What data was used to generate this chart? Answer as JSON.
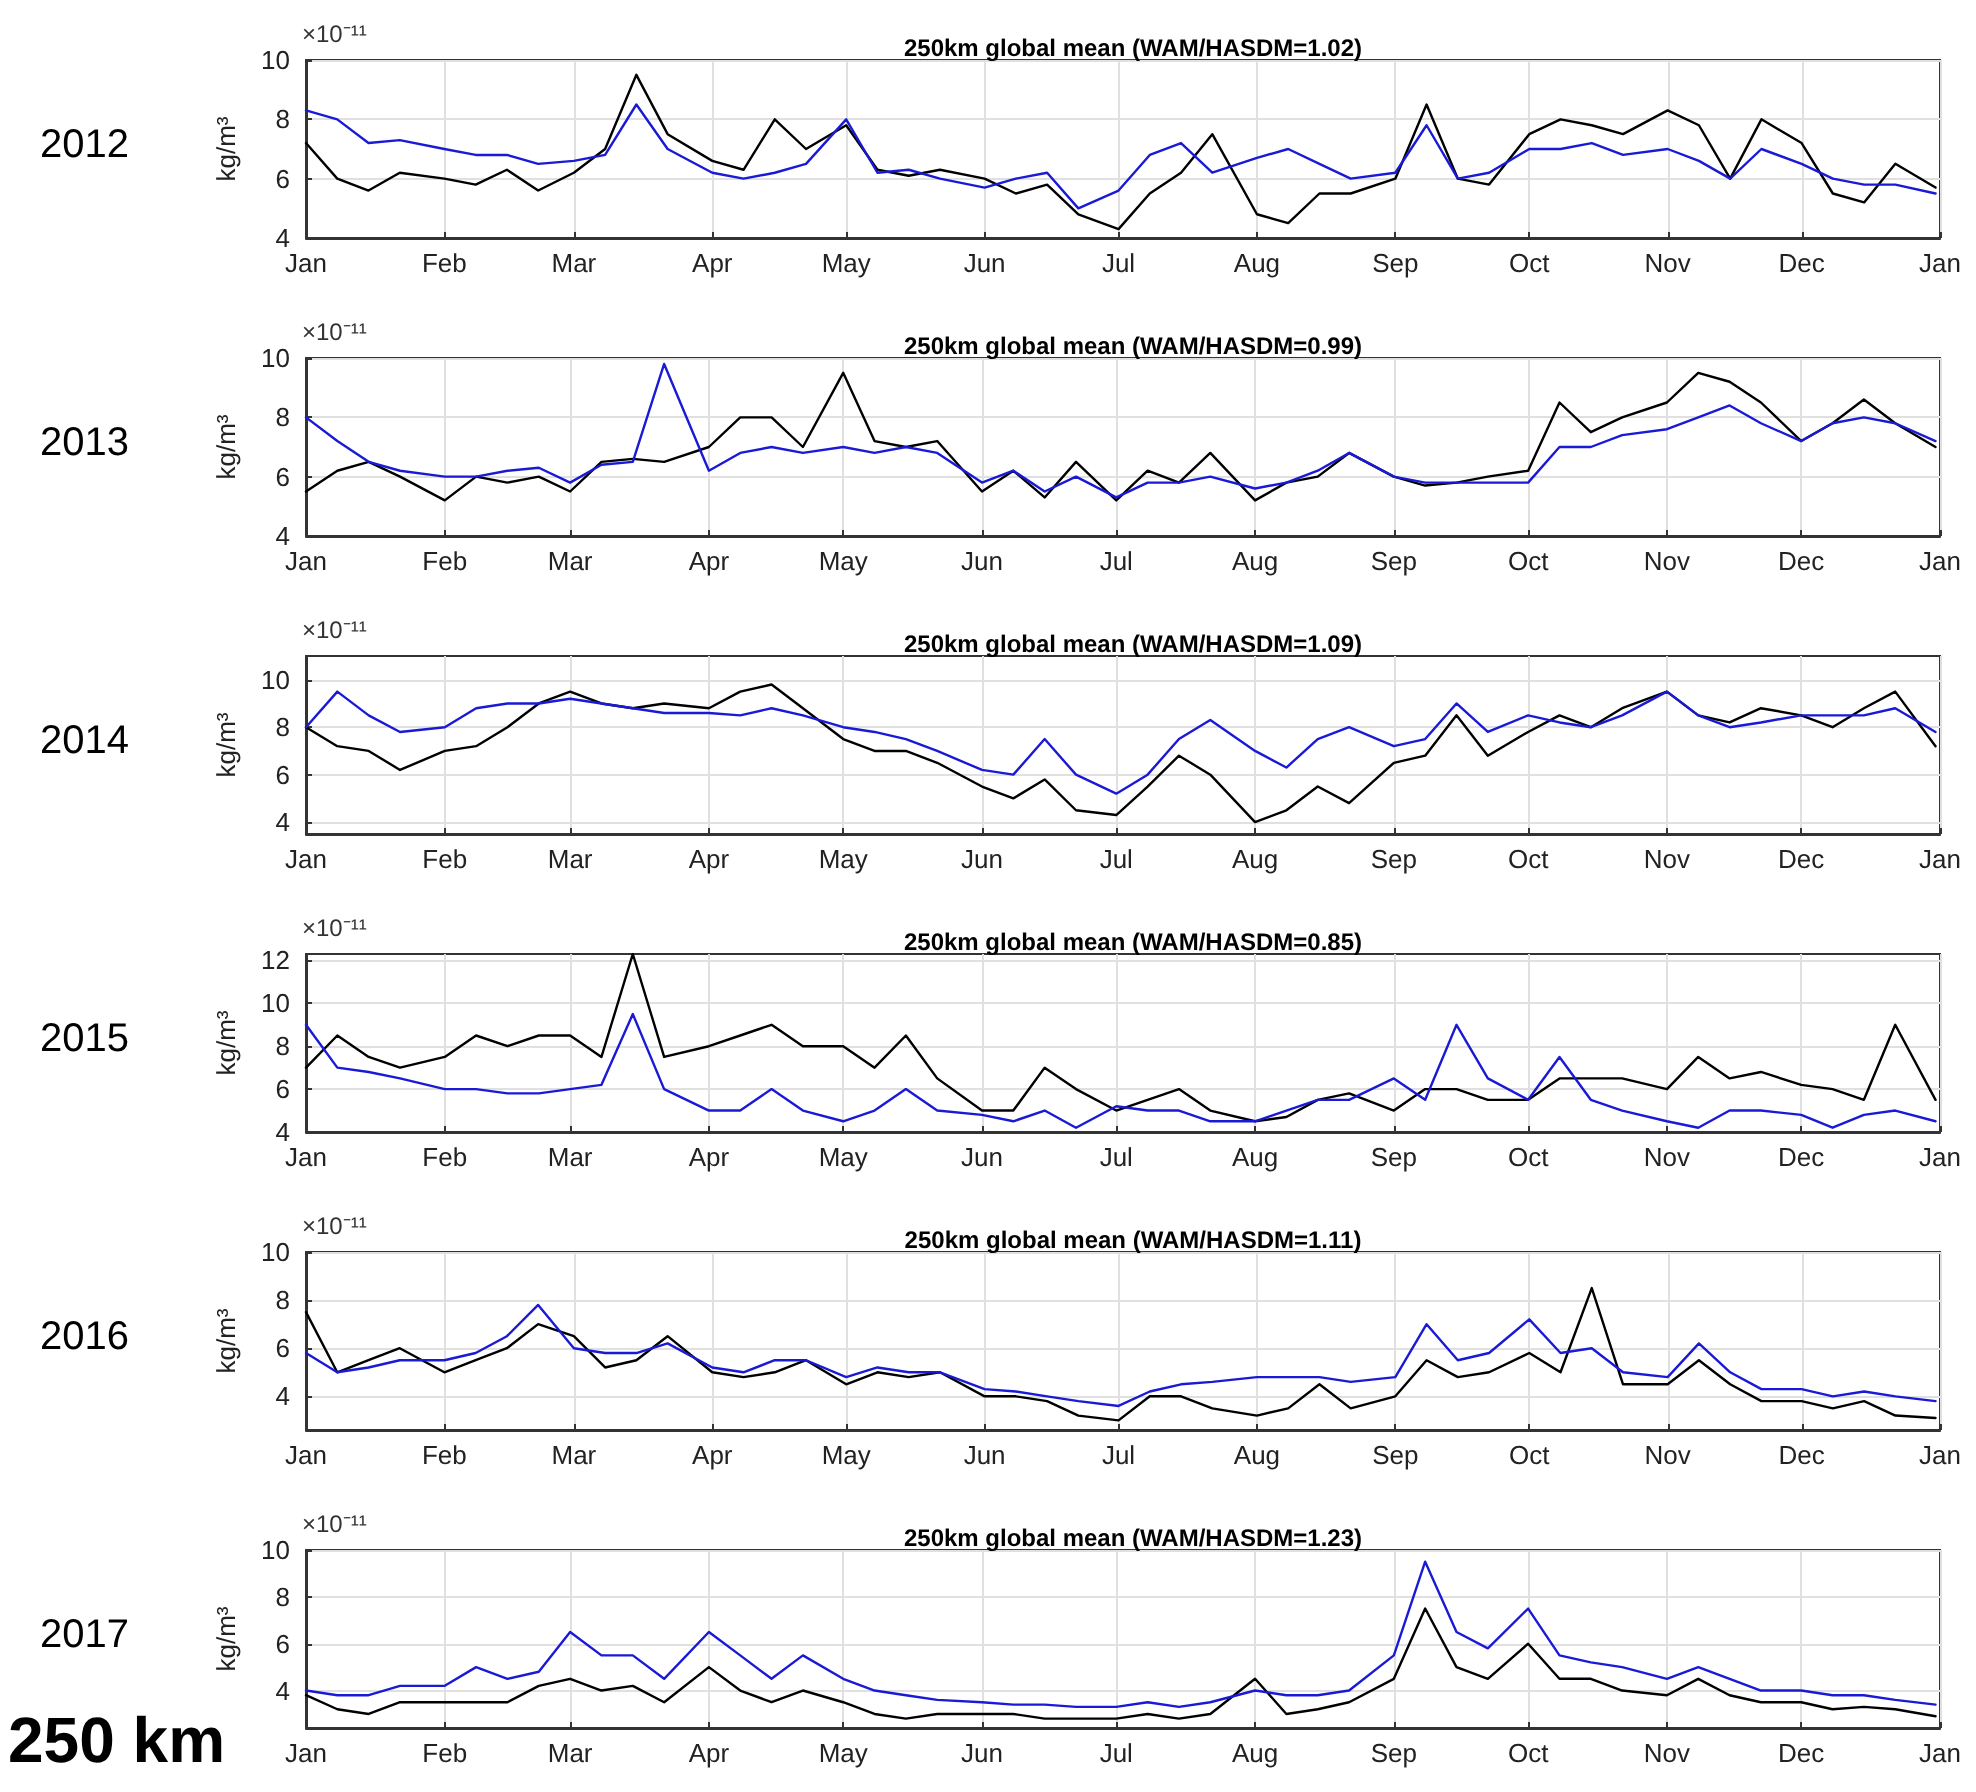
{
  "chart_data": [
    {
      "type": "line",
      "title": "250km global mean (WAM/HASDM=1.02)",
      "ylabel": "kg/m³",
      "annotations": [
        "2012",
        "×10⁻¹¹"
      ],
      "grid": true,
      "ylim": [
        4,
        10
      ],
      "yticks": [
        4,
        6,
        8,
        10
      ],
      "xlim": [
        "2012-01-01",
        "2013-01-01"
      ],
      "xticks": [
        {
          "value": "2012-01-01",
          "label": "Jan"
        },
        {
          "value": "2012-02-01",
          "label": "Feb"
        },
        {
          "value": "2012-03-01",
          "label": "Mar"
        },
        {
          "value": "2012-04-01",
          "label": "Apr"
        },
        {
          "value": "2012-05-01",
          "label": "May"
        },
        {
          "value": "2012-06-01",
          "label": "Jun"
        },
        {
          "value": "2012-07-01",
          "label": "Jul"
        },
        {
          "value": "2012-08-01",
          "label": "Aug"
        },
        {
          "value": "2012-09-01",
          "label": "Sep"
        },
        {
          "value": "2012-10-01",
          "label": "Oct"
        },
        {
          "value": "2012-11-01",
          "label": "Nov"
        },
        {
          "value": "2012-12-01",
          "label": "Dec"
        },
        {
          "value": "2013-01-01",
          "label": "Jan"
        }
      ],
      "x": [
        "2012-01-01",
        "2012-01-08",
        "2012-01-15",
        "2012-01-22",
        "2012-02-01",
        "2012-02-08",
        "2012-02-15",
        "2012-02-22",
        "2012-03-01",
        "2012-03-08",
        "2012-03-15",
        "2012-03-22",
        "2012-04-01",
        "2012-04-08",
        "2012-04-15",
        "2012-04-22",
        "2012-05-01",
        "2012-05-08",
        "2012-05-15",
        "2012-05-22",
        "2012-06-01",
        "2012-06-08",
        "2012-06-15",
        "2012-06-22",
        "2012-07-01",
        "2012-07-08",
        "2012-07-15",
        "2012-07-22",
        "2012-08-01",
        "2012-08-08",
        "2012-08-15",
        "2012-08-22",
        "2012-09-01",
        "2012-09-08",
        "2012-09-15",
        "2012-09-22",
        "2012-10-01",
        "2012-10-08",
        "2012-10-15",
        "2012-10-22",
        "2012-11-01",
        "2012-11-08",
        "2012-11-15",
        "2012-11-22",
        "2012-12-01",
        "2012-12-08",
        "2012-12-15",
        "2012-12-22",
        "2012-12-31"
      ],
      "series": [
        {
          "color": "#000000",
          "values": [
            7.2,
            6.0,
            5.6,
            6.2,
            6.0,
            5.8,
            6.3,
            5.6,
            6.2,
            7.0,
            9.5,
            7.5,
            6.6,
            6.3,
            8.0,
            7.0,
            7.8,
            6.3,
            6.1,
            6.3,
            6.0,
            5.5,
            5.8,
            4.8,
            4.3,
            5.5,
            6.2,
            7.5,
            4.8,
            4.5,
            5.5,
            5.5,
            6.0,
            8.5,
            6.0,
            5.8,
            7.5,
            8.0,
            7.8,
            7.5,
            8.3,
            7.8,
            6.0,
            8.0,
            7.2,
            5.5,
            5.2,
            6.5,
            5.7
          ]
        },
        {
          "color": "#1a1ad6",
          "values": [
            8.3,
            8.0,
            7.2,
            7.3,
            7.0,
            6.8,
            6.8,
            6.5,
            6.6,
            6.8,
            8.5,
            7.0,
            6.2,
            6.0,
            6.2,
            6.5,
            8.0,
            6.2,
            6.3,
            6.0,
            5.7,
            6.0,
            6.2,
            5.0,
            5.6,
            6.8,
            7.2,
            6.2,
            6.7,
            7.0,
            6.5,
            6.0,
            6.2,
            7.8,
            6.0,
            6.2,
            7.0,
            7.0,
            7.2,
            6.8,
            7.0,
            6.6,
            6.0,
            7.0,
            6.5,
            6.0,
            5.8,
            5.8,
            5.5
          ]
        }
      ]
    },
    {
      "type": "line",
      "title": "250km global mean (WAM/HASDM=0.99)",
      "ylabel": "kg/m³",
      "annotations": [
        "2013",
        "×10⁻¹¹"
      ],
      "grid": true,
      "ylim": [
        4,
        10
      ],
      "yticks": [
        4,
        6,
        8,
        10
      ],
      "xlim": [
        "2013-01-01",
        "2014-01-01"
      ],
      "xticks": [
        {
          "value": "2013-01-01",
          "label": "Jan"
        },
        {
          "value": "2013-02-01",
          "label": "Feb"
        },
        {
          "value": "2013-03-01",
          "label": "Mar"
        },
        {
          "value": "2013-04-01",
          "label": "Apr"
        },
        {
          "value": "2013-05-01",
          "label": "May"
        },
        {
          "value": "2013-06-01",
          "label": "Jun"
        },
        {
          "value": "2013-07-01",
          "label": "Jul"
        },
        {
          "value": "2013-08-01",
          "label": "Aug"
        },
        {
          "value": "2013-09-01",
          "label": "Sep"
        },
        {
          "value": "2013-10-01",
          "label": "Oct"
        },
        {
          "value": "2013-11-01",
          "label": "Nov"
        },
        {
          "value": "2013-12-01",
          "label": "Dec"
        },
        {
          "value": "2014-01-01",
          "label": "Jan"
        }
      ],
      "x": [
        "2013-01-01",
        "2013-01-08",
        "2013-01-15",
        "2013-01-22",
        "2013-02-01",
        "2013-02-08",
        "2013-02-15",
        "2013-02-22",
        "2013-03-01",
        "2013-03-08",
        "2013-03-15",
        "2013-03-22",
        "2013-04-01",
        "2013-04-08",
        "2013-04-15",
        "2013-04-22",
        "2013-05-01",
        "2013-05-08",
        "2013-05-15",
        "2013-05-22",
        "2013-06-01",
        "2013-06-08",
        "2013-06-15",
        "2013-06-22",
        "2013-07-01",
        "2013-07-08",
        "2013-07-15",
        "2013-07-22",
        "2013-08-01",
        "2013-08-08",
        "2013-08-15",
        "2013-08-22",
        "2013-09-01",
        "2013-09-08",
        "2013-09-15",
        "2013-09-22",
        "2013-10-01",
        "2013-10-08",
        "2013-10-15",
        "2013-10-22",
        "2013-11-01",
        "2013-11-08",
        "2013-11-15",
        "2013-11-22",
        "2013-12-01",
        "2013-12-08",
        "2013-12-15",
        "2013-12-22",
        "2013-12-31"
      ],
      "series": [
        {
          "color": "#000000",
          "values": [
            5.5,
            6.2,
            6.5,
            6.0,
            5.2,
            6.0,
            5.8,
            6.0,
            5.5,
            6.5,
            6.6,
            6.5,
            7.0,
            8.0,
            8.0,
            7.0,
            9.5,
            7.2,
            7.0,
            7.2,
            5.5,
            6.2,
            5.3,
            6.5,
            5.2,
            6.2,
            5.8,
            6.8,
            5.2,
            5.8,
            6.0,
            6.8,
            6.0,
            5.7,
            5.8,
            6.0,
            6.2,
            8.5,
            7.5,
            8.0,
            8.5,
            9.5,
            9.2,
            8.5,
            7.2,
            7.8,
            8.6,
            7.8,
            7.0
          ]
        },
        {
          "color": "#1a1ad6",
          "values": [
            8.0,
            7.2,
            6.5,
            6.2,
            6.0,
            6.0,
            6.2,
            6.3,
            5.8,
            6.4,
            6.5,
            9.8,
            6.2,
            6.8,
            7.0,
            6.8,
            7.0,
            6.8,
            7.0,
            6.8,
            5.8,
            6.2,
            5.5,
            6.0,
            5.3,
            5.8,
            5.8,
            6.0,
            5.6,
            5.8,
            6.2,
            6.8,
            6.0,
            5.8,
            5.8,
            5.8,
            5.8,
            7.0,
            7.0,
            7.4,
            7.6,
            8.0,
            8.4,
            7.8,
            7.2,
            7.8,
            8.0,
            7.8,
            7.2
          ]
        }
      ]
    },
    {
      "type": "line",
      "title": "250km global mean (WAM/HASDM=1.09)",
      "ylabel": "kg/m³",
      "annotations": [
        "2014",
        "×10⁻¹¹"
      ],
      "grid": true,
      "ylim": [
        3.5,
        11
      ],
      "yticks": [
        4,
        6,
        8,
        10
      ],
      "xlim": [
        "2014-01-01",
        "2015-01-01"
      ],
      "xticks": [
        {
          "value": "2014-01-01",
          "label": "Jan"
        },
        {
          "value": "2014-02-01",
          "label": "Feb"
        },
        {
          "value": "2014-03-01",
          "label": "Mar"
        },
        {
          "value": "2014-04-01",
          "label": "Apr"
        },
        {
          "value": "2014-05-01",
          "label": "May"
        },
        {
          "value": "2014-06-01",
          "label": "Jun"
        },
        {
          "value": "2014-07-01",
          "label": "Jul"
        },
        {
          "value": "2014-08-01",
          "label": "Aug"
        },
        {
          "value": "2014-09-01",
          "label": "Sep"
        },
        {
          "value": "2014-10-01",
          "label": "Oct"
        },
        {
          "value": "2014-11-01",
          "label": "Nov"
        },
        {
          "value": "2014-12-01",
          "label": "Dec"
        },
        {
          "value": "2015-01-01",
          "label": "Jan"
        }
      ],
      "x": [
        "2014-01-01",
        "2014-01-08",
        "2014-01-15",
        "2014-01-22",
        "2014-02-01",
        "2014-02-08",
        "2014-02-15",
        "2014-02-22",
        "2014-03-01",
        "2014-03-08",
        "2014-03-15",
        "2014-03-22",
        "2014-04-01",
        "2014-04-08",
        "2014-04-15",
        "2014-04-22",
        "2014-05-01",
        "2014-05-08",
        "2014-05-15",
        "2014-05-22",
        "2014-06-01",
        "2014-06-08",
        "2014-06-15",
        "2014-06-22",
        "2014-07-01",
        "2014-07-08",
        "2014-07-15",
        "2014-07-22",
        "2014-08-01",
        "2014-08-08",
        "2014-08-15",
        "2014-08-22",
        "2014-09-01",
        "2014-09-08",
        "2014-09-15",
        "2014-09-22",
        "2014-10-01",
        "2014-10-08",
        "2014-10-15",
        "2014-10-22",
        "2014-11-01",
        "2014-11-08",
        "2014-11-15",
        "2014-11-22",
        "2014-12-01",
        "2014-12-08",
        "2014-12-15",
        "2014-12-22",
        "2014-12-31"
      ],
      "series": [
        {
          "color": "#000000",
          "values": [
            8.0,
            7.2,
            7.0,
            6.2,
            7.0,
            7.2,
            8.0,
            9.0,
            9.5,
            9.0,
            8.8,
            9.0,
            8.8,
            9.5,
            9.8,
            8.8,
            7.5,
            7.0,
            7.0,
            6.5,
            5.5,
            5.0,
            5.8,
            4.5,
            4.3,
            5.5,
            6.8,
            6.0,
            4.0,
            4.5,
            5.5,
            4.8,
            6.5,
            6.8,
            8.5,
            6.8,
            7.8,
            8.5,
            8.0,
            8.8,
            9.5,
            8.5,
            8.2,
            8.8,
            8.5,
            8.0,
            8.8,
            9.5,
            7.2
          ]
        },
        {
          "color": "#1a1ad6",
          "values": [
            8.0,
            9.5,
            8.5,
            7.8,
            8.0,
            8.8,
            9.0,
            9.0,
            9.2,
            9.0,
            8.8,
            8.6,
            8.6,
            8.5,
            8.8,
            8.5,
            8.0,
            7.8,
            7.5,
            7.0,
            6.2,
            6.0,
            7.5,
            6.0,
            5.2,
            6.0,
            7.5,
            8.3,
            7.0,
            6.3,
            7.5,
            8.0,
            7.2,
            7.5,
            9.0,
            7.8,
            8.5,
            8.2,
            8.0,
            8.5,
            9.5,
            8.5,
            8.0,
            8.2,
            8.5,
            8.5,
            8.5,
            8.8,
            7.8
          ]
        }
      ]
    },
    {
      "type": "line",
      "title": "250km global mean (WAM/HASDM=0.85)",
      "ylabel": "kg/m³",
      "annotations": [
        "2015",
        "×10⁻¹¹"
      ],
      "grid": true,
      "ylim": [
        4,
        12.3
      ],
      "yticks": [
        4,
        6,
        8,
        10,
        12
      ],
      "xlim": [
        "2015-01-01",
        "2016-01-01"
      ],
      "xticks": [
        {
          "value": "2015-01-01",
          "label": "Jan"
        },
        {
          "value": "2015-02-01",
          "label": "Feb"
        },
        {
          "value": "2015-03-01",
          "label": "Mar"
        },
        {
          "value": "2015-04-01",
          "label": "Apr"
        },
        {
          "value": "2015-05-01",
          "label": "May"
        },
        {
          "value": "2015-06-01",
          "label": "Jun"
        },
        {
          "value": "2015-07-01",
          "label": "Jul"
        },
        {
          "value": "2015-08-01",
          "label": "Aug"
        },
        {
          "value": "2015-09-01",
          "label": "Sep"
        },
        {
          "value": "2015-10-01",
          "label": "Oct"
        },
        {
          "value": "2015-11-01",
          "label": "Nov"
        },
        {
          "value": "2015-12-01",
          "label": "Dec"
        },
        {
          "value": "2016-01-01",
          "label": "Jan"
        }
      ],
      "x": [
        "2015-01-01",
        "2015-01-08",
        "2015-01-15",
        "2015-01-22",
        "2015-02-01",
        "2015-02-08",
        "2015-02-15",
        "2015-02-22",
        "2015-03-01",
        "2015-03-08",
        "2015-03-15",
        "2015-03-22",
        "2015-04-01",
        "2015-04-08",
        "2015-04-15",
        "2015-04-22",
        "2015-05-01",
        "2015-05-08",
        "2015-05-15",
        "2015-05-22",
        "2015-06-01",
        "2015-06-08",
        "2015-06-15",
        "2015-06-22",
        "2015-07-01",
        "2015-07-08",
        "2015-07-15",
        "2015-07-22",
        "2015-08-01",
        "2015-08-08",
        "2015-08-15",
        "2015-08-22",
        "2015-09-01",
        "2015-09-08",
        "2015-09-15",
        "2015-09-22",
        "2015-10-01",
        "2015-10-08",
        "2015-10-15",
        "2015-10-22",
        "2015-11-01",
        "2015-11-08",
        "2015-11-15",
        "2015-11-22",
        "2015-12-01",
        "2015-12-08",
        "2015-12-15",
        "2015-12-22",
        "2015-12-31"
      ],
      "series": [
        {
          "color": "#000000",
          "values": [
            7.0,
            8.5,
            7.5,
            7.0,
            7.5,
            8.5,
            8.0,
            8.5,
            8.5,
            7.5,
            12.3,
            7.5,
            8.0,
            8.5,
            9.0,
            8.0,
            8.0,
            7.0,
            8.5,
            6.5,
            5.0,
            5.0,
            7.0,
            6.0,
            5.0,
            5.5,
            6.0,
            5.0,
            4.5,
            4.7,
            5.5,
            5.8,
            5.0,
            6.0,
            6.0,
            5.5,
            5.5,
            6.5,
            6.5,
            6.5,
            6.0,
            7.5,
            6.5,
            6.8,
            6.2,
            6.0,
            5.5,
            9.0,
            5.5
          ]
        },
        {
          "color": "#1a1ad6",
          "values": [
            9.0,
            7.0,
            6.8,
            6.5,
            6.0,
            6.0,
            5.8,
            5.8,
            6.0,
            6.2,
            9.5,
            6.0,
            5.0,
            5.0,
            6.0,
            5.0,
            4.5,
            5.0,
            6.0,
            5.0,
            4.8,
            4.5,
            5.0,
            4.2,
            5.2,
            5.0,
            5.0,
            4.5,
            4.5,
            5.0,
            5.5,
            5.5,
            6.5,
            5.5,
            9.0,
            6.5,
            5.5,
            7.5,
            5.5,
            5.0,
            4.5,
            4.2,
            5.0,
            5.0,
            4.8,
            4.2,
            4.8,
            5.0,
            4.5
          ]
        }
      ]
    },
    {
      "type": "line",
      "title": "250km global mean (WAM/HASDM=1.11)",
      "ylabel": "kg/m³",
      "annotations": [
        "2016",
        "×10⁻¹¹"
      ],
      "grid": true,
      "ylim": [
        2.6,
        10
      ],
      "yticks": [
        4,
        6,
        8,
        10
      ],
      "xlim": [
        "2016-01-01",
        "2017-01-01"
      ],
      "xticks": [
        {
          "value": "2016-01-01",
          "label": "Jan"
        },
        {
          "value": "2016-02-01",
          "label": "Feb"
        },
        {
          "value": "2016-03-01",
          "label": "Mar"
        },
        {
          "value": "2016-04-01",
          "label": "Apr"
        },
        {
          "value": "2016-05-01",
          "label": "May"
        },
        {
          "value": "2016-06-01",
          "label": "Jun"
        },
        {
          "value": "2016-07-01",
          "label": "Jul"
        },
        {
          "value": "2016-08-01",
          "label": "Aug"
        },
        {
          "value": "2016-09-01",
          "label": "Sep"
        },
        {
          "value": "2016-10-01",
          "label": "Oct"
        },
        {
          "value": "2016-11-01",
          "label": "Nov"
        },
        {
          "value": "2016-12-01",
          "label": "Dec"
        },
        {
          "value": "2017-01-01",
          "label": "Jan"
        }
      ],
      "x": [
        "2016-01-01",
        "2016-01-08",
        "2016-01-15",
        "2016-01-22",
        "2016-02-01",
        "2016-02-08",
        "2016-02-15",
        "2016-02-22",
        "2016-03-01",
        "2016-03-08",
        "2016-03-15",
        "2016-03-22",
        "2016-04-01",
        "2016-04-08",
        "2016-04-15",
        "2016-04-22",
        "2016-05-01",
        "2016-05-08",
        "2016-05-15",
        "2016-05-22",
        "2016-06-01",
        "2016-06-08",
        "2016-06-15",
        "2016-06-22",
        "2016-07-01",
        "2016-07-08",
        "2016-07-15",
        "2016-07-22",
        "2016-08-01",
        "2016-08-08",
        "2016-08-15",
        "2016-08-22",
        "2016-09-01",
        "2016-09-08",
        "2016-09-15",
        "2016-09-22",
        "2016-10-01",
        "2016-10-08",
        "2016-10-15",
        "2016-10-22",
        "2016-11-01",
        "2016-11-08",
        "2016-11-15",
        "2016-11-22",
        "2016-12-01",
        "2016-12-08",
        "2016-12-15",
        "2016-12-22",
        "2016-12-31"
      ],
      "series": [
        {
          "color": "#000000",
          "values": [
            7.5,
            5.0,
            5.5,
            6.0,
            5.0,
            5.5,
            6.0,
            7.0,
            6.5,
            5.2,
            5.5,
            6.5,
            5.0,
            4.8,
            5.0,
            5.5,
            4.5,
            5.0,
            4.8,
            5.0,
            4.0,
            4.0,
            3.8,
            3.2,
            3.0,
            4.0,
            4.0,
            3.5,
            3.2,
            3.5,
            4.5,
            3.5,
            4.0,
            5.5,
            4.8,
            5.0,
            5.8,
            5.0,
            8.5,
            4.5,
            4.5,
            5.5,
            4.5,
            3.8,
            3.8,
            3.5,
            3.8,
            3.2,
            3.1
          ]
        },
        {
          "color": "#1a1ad6",
          "values": [
            5.8,
            5.0,
            5.2,
            5.5,
            5.5,
            5.8,
            6.5,
            7.8,
            6.0,
            5.8,
            5.8,
            6.2,
            5.2,
            5.0,
            5.5,
            5.5,
            4.8,
            5.2,
            5.0,
            5.0,
            4.3,
            4.2,
            4.0,
            3.8,
            3.6,
            4.2,
            4.5,
            4.6,
            4.8,
            4.8,
            4.8,
            4.6,
            4.8,
            7.0,
            5.5,
            5.8,
            7.2,
            5.8,
            6.0,
            5.0,
            4.8,
            6.2,
            5.0,
            4.3,
            4.3,
            4.0,
            4.2,
            4.0,
            3.8
          ]
        }
      ]
    },
    {
      "type": "line",
      "title": "250km global mean (WAM/HASDM=1.23)",
      "ylabel": "kg/m³",
      "annotations": [
        "2017",
        "×10⁻¹¹",
        "250 km"
      ],
      "grid": true,
      "ylim": [
        2.4,
        10
      ],
      "yticks": [
        4,
        6,
        8,
        10
      ],
      "xlim": [
        "2017-01-01",
        "2018-01-01"
      ],
      "xticks": [
        {
          "value": "2017-01-01",
          "label": "Jan"
        },
        {
          "value": "2017-02-01",
          "label": "Feb"
        },
        {
          "value": "2017-03-01",
          "label": "Mar"
        },
        {
          "value": "2017-04-01",
          "label": "Apr"
        },
        {
          "value": "2017-05-01",
          "label": "May"
        },
        {
          "value": "2017-06-01",
          "label": "Jun"
        },
        {
          "value": "2017-07-01",
          "label": "Jul"
        },
        {
          "value": "2017-08-01",
          "label": "Aug"
        },
        {
          "value": "2017-09-01",
          "label": "Sep"
        },
        {
          "value": "2017-10-01",
          "label": "Oct"
        },
        {
          "value": "2017-11-01",
          "label": "Nov"
        },
        {
          "value": "2017-12-01",
          "label": "Dec"
        },
        {
          "value": "2018-01-01",
          "label": "Jan"
        }
      ],
      "x": [
        "2017-01-01",
        "2017-01-08",
        "2017-01-15",
        "2017-01-22",
        "2017-02-01",
        "2017-02-08",
        "2017-02-15",
        "2017-02-22",
        "2017-03-01",
        "2017-03-08",
        "2017-03-15",
        "2017-03-22",
        "2017-04-01",
        "2017-04-08",
        "2017-04-15",
        "2017-04-22",
        "2017-05-01",
        "2017-05-08",
        "2017-05-15",
        "2017-05-22",
        "2017-06-01",
        "2017-06-08",
        "2017-06-15",
        "2017-06-22",
        "2017-07-01",
        "2017-07-08",
        "2017-07-15",
        "2017-07-22",
        "2017-08-01",
        "2017-08-08",
        "2017-08-15",
        "2017-08-22",
        "2017-09-01",
        "2017-09-08",
        "2017-09-15",
        "2017-09-22",
        "2017-10-01",
        "2017-10-08",
        "2017-10-15",
        "2017-10-22",
        "2017-11-01",
        "2017-11-08",
        "2017-11-15",
        "2017-11-22",
        "2017-12-01",
        "2017-12-08",
        "2017-12-15",
        "2017-12-22",
        "2017-12-31"
      ],
      "series": [
        {
          "color": "#000000",
          "values": [
            3.8,
            3.2,
            3.0,
            3.5,
            3.5,
            3.5,
            3.5,
            4.2,
            4.5,
            4.0,
            4.2,
            3.5,
            5.0,
            4.0,
            3.5,
            4.0,
            3.5,
            3.0,
            2.8,
            3.0,
            3.0,
            3.0,
            2.8,
            2.8,
            2.8,
            3.0,
            2.8,
            3.0,
            4.5,
            3.0,
            3.2,
            3.5,
            4.5,
            7.5,
            5.0,
            4.5,
            6.0,
            4.5,
            4.5,
            4.0,
            3.8,
            4.5,
            3.8,
            3.5,
            3.5,
            3.2,
            3.3,
            3.2,
            2.9
          ]
        },
        {
          "color": "#1a1ad6",
          "values": [
            4.0,
            3.8,
            3.8,
            4.2,
            4.2,
            5.0,
            4.5,
            4.8,
            6.5,
            5.5,
            5.5,
            4.5,
            6.5,
            5.5,
            4.5,
            5.5,
            4.5,
            4.0,
            3.8,
            3.6,
            3.5,
            3.4,
            3.4,
            3.3,
            3.3,
            3.5,
            3.3,
            3.5,
            4.0,
            3.8,
            3.8,
            4.0,
            5.5,
            9.5,
            6.5,
            5.8,
            7.5,
            5.5,
            5.2,
            5.0,
            4.5,
            5.0,
            4.5,
            4.0,
            4.0,
            3.8,
            3.8,
            3.6,
            3.4
          ]
        }
      ]
    }
  ]
}
